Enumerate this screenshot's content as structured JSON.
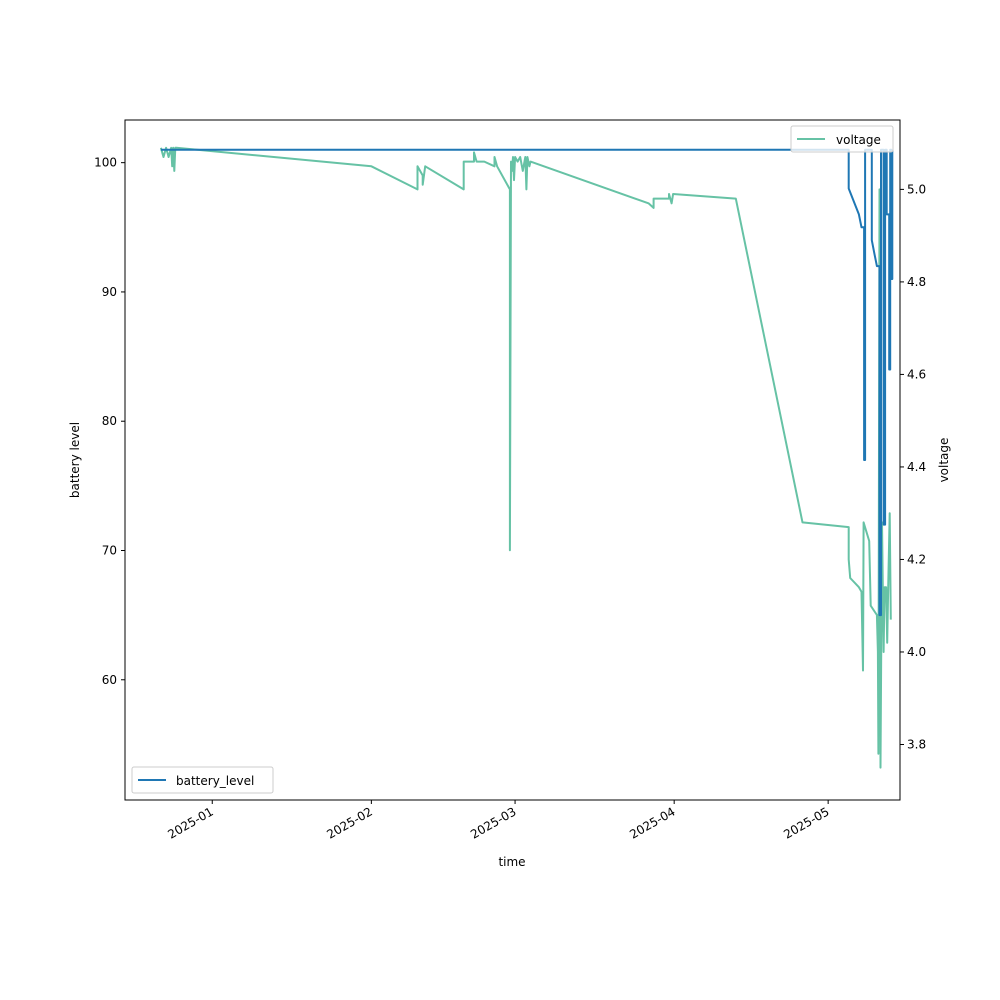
{
  "chart_data": {
    "type": "line",
    "xlabel": "time",
    "ylabel_left": "battery level",
    "ylabel_right": "voltage",
    "x_range": [
      "2024-12-15",
      "2025-05-15"
    ],
    "ylim_left": [
      50.7,
      103.3
    ],
    "ylim_right": [
      3.68,
      5.15
    ],
    "x_ticks": [
      "2025-01",
      "2025-02",
      "2025-03",
      "2025-04",
      "2025-05"
    ],
    "y_ticks_left": [
      60,
      70,
      80,
      90,
      100
    ],
    "y_ticks_right": [
      3.8,
      4.0,
      4.2,
      4.4,
      4.6,
      4.8,
      5.0
    ],
    "grid": false,
    "legend_left": "lower-left",
    "legend_right": "upper-right",
    "series": [
      {
        "name": "battery_level",
        "axis": "left",
        "color": "#1f77b4",
        "points": [
          [
            "2024-12-22",
            101
          ],
          [
            "2025-01-15",
            101
          ],
          [
            "2025-02-10",
            101
          ],
          [
            "2025-03-05",
            101
          ],
          [
            "2025-04-01",
            101
          ],
          [
            "2025-04-20",
            101
          ],
          [
            "2025-05-05",
            101
          ],
          [
            "2025-05-05",
            98
          ],
          [
            "2025-05-07",
            96
          ],
          [
            "2025-05-07.5",
            95
          ],
          [
            "2025-05-08",
            95
          ],
          [
            "2025-05-08",
            77
          ],
          [
            "2025-05-08.2",
            77
          ],
          [
            "2025-05-08.2",
            101
          ],
          [
            "2025-05-09.5",
            101
          ],
          [
            "2025-05-09.5",
            94
          ],
          [
            "2025-05-10",
            93
          ],
          [
            "2025-05-10.5",
            92
          ],
          [
            "2025-05-11",
            92
          ],
          [
            "2025-05-11",
            65
          ],
          [
            "2025-05-11.3",
            65
          ],
          [
            "2025-05-11.3",
            101
          ],
          [
            "2025-05-11.8",
            101
          ],
          [
            "2025-05-11.8",
            72
          ],
          [
            "2025-05-12.1",
            72
          ],
          [
            "2025-05-12.1",
            101
          ],
          [
            "2025-05-12.4",
            101
          ],
          [
            "2025-05-12.4",
            96
          ],
          [
            "2025-05-12.9",
            96
          ],
          [
            "2025-05-12.9",
            84
          ],
          [
            "2025-05-13.1",
            84
          ],
          [
            "2025-05-13.1",
            101
          ],
          [
            "2025-05-13.3",
            101
          ],
          [
            "2025-05-13.3",
            91
          ],
          [
            "2025-05-13.5",
            91
          ],
          [
            "2025-05-13.5",
            101
          ]
        ]
      },
      {
        "name": "voltage",
        "axis": "right",
        "color": "#66c2a5",
        "points": [
          [
            "2024-12-22",
            5.09
          ],
          [
            "2024-12-22.5",
            5.07
          ],
          [
            "2024-12-23",
            5.09
          ],
          [
            "2024-12-23.5",
            5.07
          ],
          [
            "2024-12-24",
            5.09
          ],
          [
            "2024-12-24.2",
            5.05
          ],
          [
            "2024-12-24.4",
            5.09
          ],
          [
            "2024-12-24.6",
            5.04
          ],
          [
            "2024-12-24.8",
            5.09
          ],
          [
            "2024-12-25",
            5.09
          ],
          [
            "2025-02-01",
            5.05
          ],
          [
            "2025-02-10",
            5.0
          ],
          [
            "2025-02-10",
            5.05
          ],
          [
            "2025-02-11",
            5.03
          ],
          [
            "2025-02-11",
            5.01
          ],
          [
            "2025-02-11.5",
            5.05
          ],
          [
            "2025-02-19",
            5.0
          ],
          [
            "2025-02-19",
            5.06
          ],
          [
            "2025-02-20",
            5.06
          ],
          [
            "2025-02-21",
            5.06
          ],
          [
            "2025-02-21",
            5.08
          ],
          [
            "2025-02-21.5",
            5.06
          ],
          [
            "2025-02-23",
            5.06
          ],
          [
            "2025-02-25",
            5.05
          ],
          [
            "2025-02-25",
            5.07
          ],
          [
            "2025-02-25.5",
            5.05
          ],
          [
            "2025-02-28",
            5.0
          ],
          [
            "2025-02-28",
            4.22
          ],
          [
            "2025-02-28.2",
            5.06
          ],
          [
            "2025-02-28.4",
            5.04
          ],
          [
            "2025-02-28.6",
            5.07
          ],
          [
            "2025-02-28.8",
            5.02
          ],
          [
            "2025-03-01",
            5.07
          ],
          [
            "2025-03-01.5",
            5.06
          ],
          [
            "2025-03-02",
            5.07
          ],
          [
            "2025-03-02.5",
            5.04
          ],
          [
            "2025-03-03",
            5.07
          ],
          [
            "2025-03-03.2",
            5.0
          ],
          [
            "2025-03-03.4",
            5.07
          ],
          [
            "2025-03-03.8",
            5.05
          ],
          [
            "2025-03-04",
            5.06
          ],
          [
            "2025-03-27",
            4.97
          ],
          [
            "2025-03-28",
            4.96
          ],
          [
            "2025-03-28",
            4.98
          ],
          [
            "2025-03-31",
            4.98
          ],
          [
            "2025-03-31",
            4.99
          ],
          [
            "2025-03-31.5",
            4.97
          ],
          [
            "2025-03-31.8",
            4.99
          ],
          [
            "2025-04-13",
            4.98
          ],
          [
            "2025-04-26",
            4.28
          ],
          [
            "2025-05-05",
            4.27
          ],
          [
            "2025-05-05",
            4.2
          ],
          [
            "2025-05-05.3",
            4.16
          ],
          [
            "2025-05-07",
            4.14
          ],
          [
            "2025-05-07.5",
            4.13
          ],
          [
            "2025-05-07.8",
            3.96
          ],
          [
            "2025-05-07.9",
            4.28
          ],
          [
            "2025-05-09",
            4.24
          ],
          [
            "2025-05-09.3",
            4.1
          ],
          [
            "2025-05-10.5",
            4.08
          ],
          [
            "2025-05-10.7",
            4.0
          ],
          [
            "2025-05-10.8",
            3.78
          ],
          [
            "2025-05-11",
            5.0
          ],
          [
            "2025-05-11.2",
            3.75
          ],
          [
            "2025-05-11.5",
            4.28
          ],
          [
            "2025-05-11.8",
            4.0
          ],
          [
            "2025-05-12",
            4.14
          ],
          [
            "2025-05-12.3",
            4.14
          ],
          [
            "2025-05-12.5",
            4.02
          ],
          [
            "2025-05-12.7",
            4.14
          ],
          [
            "2025-05-13",
            4.3
          ],
          [
            "2025-05-13.2",
            4.07
          ]
        ]
      }
    ]
  }
}
